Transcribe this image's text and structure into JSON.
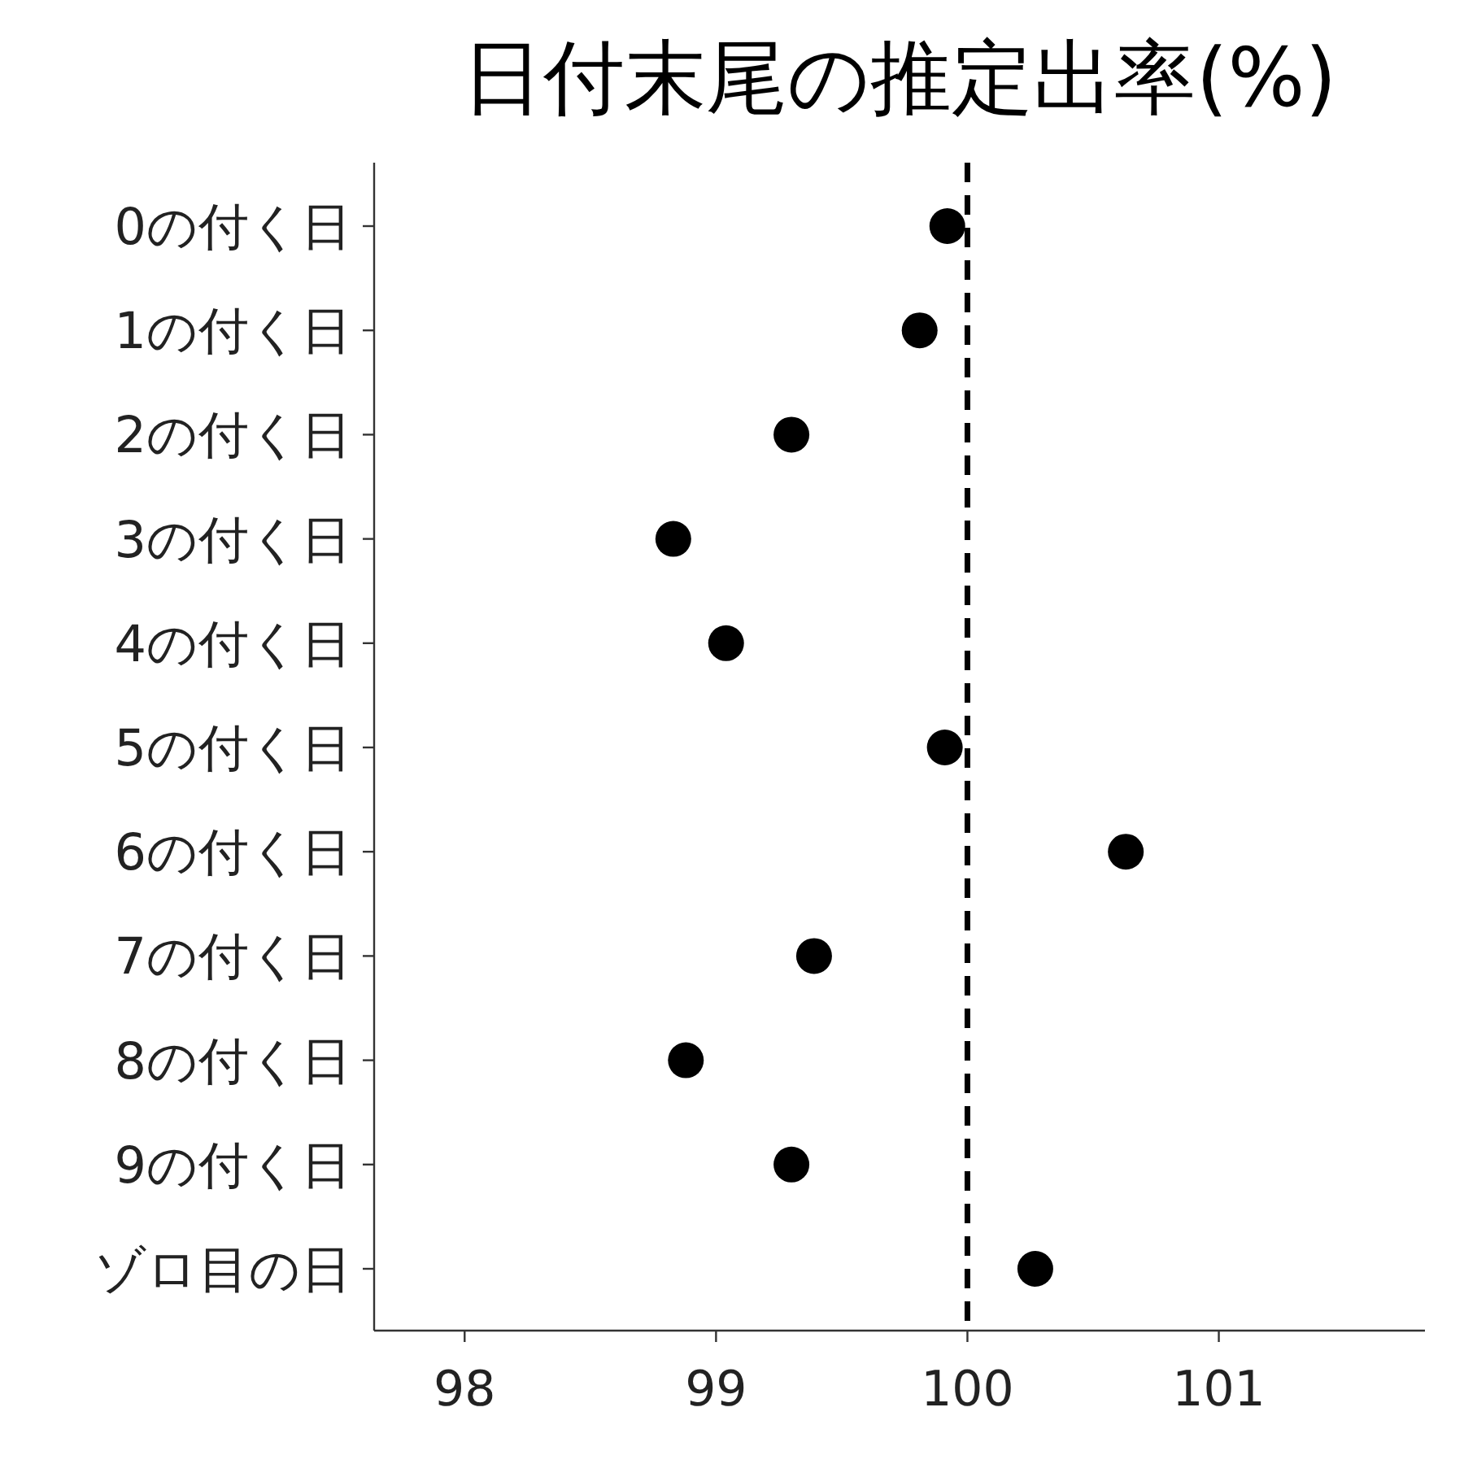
{
  "chart_data": {
    "type": "scatter",
    "title": "日付末尾の推定出率(%)",
    "orientation": "horizontal",
    "categories": [
      "0の付く日",
      "1の付く日",
      "2の付く日",
      "3の付く日",
      "4の付く日",
      "5の付く日",
      "6の付く日",
      "7の付く日",
      "8の付く日",
      "9の付く日",
      "ゾロ目の日"
    ],
    "values": [
      99.92,
      99.81,
      99.3,
      98.83,
      99.04,
      99.91,
      100.63,
      99.39,
      98.88,
      99.3,
      100.27
    ],
    "color": "#000000",
    "marker": "circle",
    "grid": false,
    "xlim": [
      97.64,
      101.82
    ],
    "xticks": [
      98,
      99,
      100,
      101
    ],
    "ref_lines": [
      {
        "axis": "x",
        "value": 100,
        "color": "#000000",
        "line_style": "dashed"
      }
    ]
  }
}
